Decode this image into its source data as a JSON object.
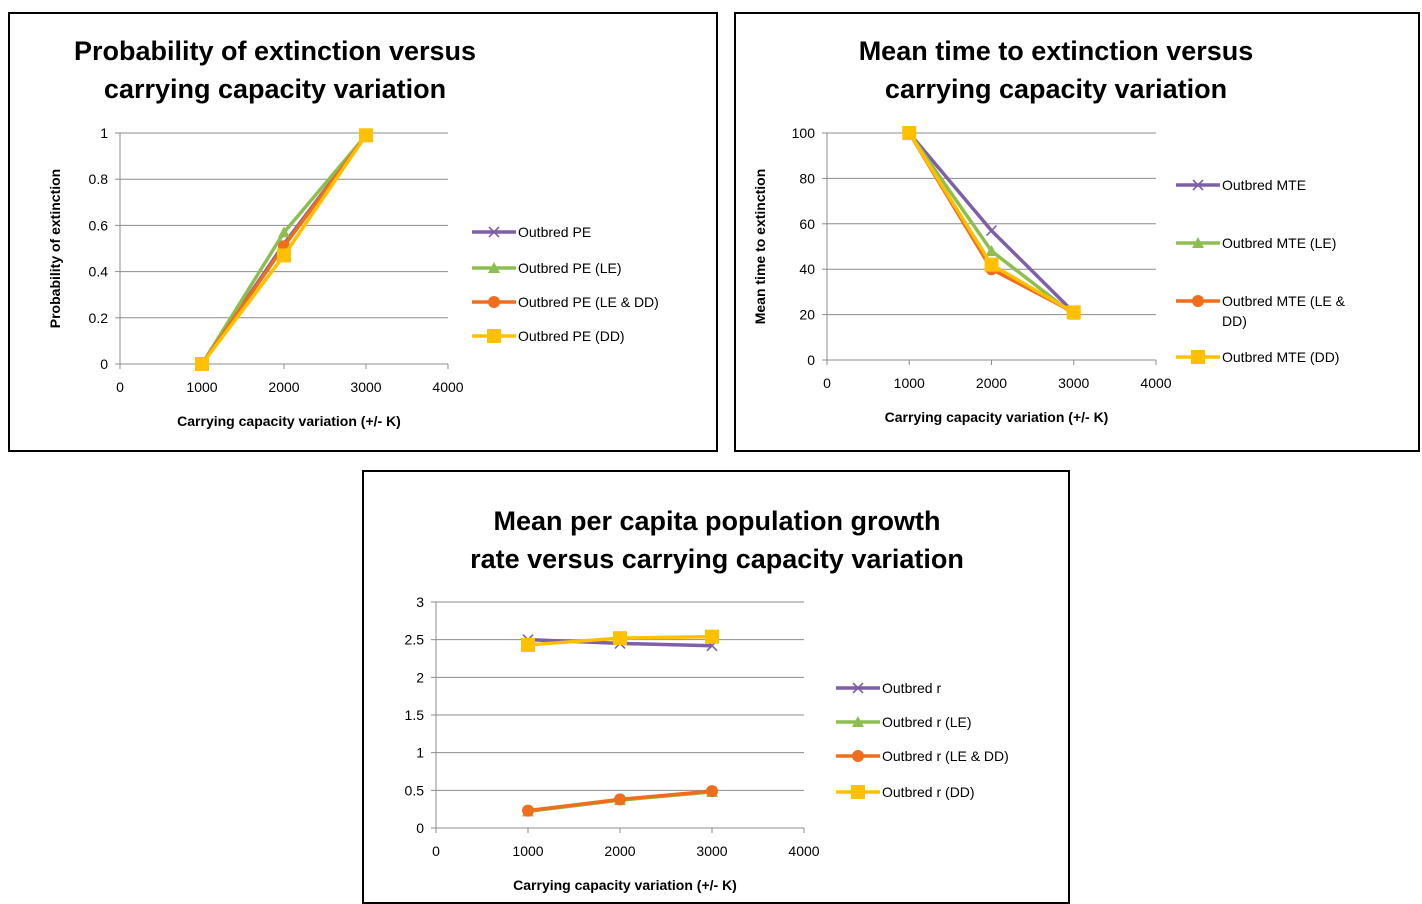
{
  "colors": {
    "grid": "#8c8c8c",
    "series_1": "#7f5fa8",
    "series_2": "#8cbe50",
    "series_3": "#ee6e1e",
    "series_4": "#ffc000"
  },
  "chart_data": [
    {
      "type": "line",
      "title_lines": [
        "Probability of extinction versus",
        "carrying capacity variation"
      ],
      "xlabel": "Carrying capacity variation (+/- K)",
      "ylabel": "Probability of extinction",
      "xlim": [
        0,
        4000
      ],
      "ylim": [
        0,
        1
      ],
      "xticks": [
        0,
        1000,
        2000,
        3000,
        4000
      ],
      "yticks": [
        0,
        0.2,
        0.4,
        0.6,
        0.8,
        1
      ],
      "x": [
        1000,
        2000,
        3000
      ],
      "legend_position": "right",
      "grid": true,
      "series": [
        {
          "name": "Outbred PE",
          "values": [
            0,
            0.52,
            0.99
          ],
          "color": "#7f5fa8",
          "marker": "x"
        },
        {
          "name": "Outbred PE (LE)",
          "values": [
            0,
            0.57,
            0.99
          ],
          "color": "#8cbe50",
          "marker": "triangle"
        },
        {
          "name": "Outbred PE (LE & DD)",
          "values": [
            0,
            0.51,
            0.99
          ],
          "color": "#ee6e1e",
          "marker": "circle"
        },
        {
          "name": "Outbred PE (DD)",
          "values": [
            0,
            0.47,
            0.99
          ],
          "color": "#ffc000",
          "marker": "square"
        }
      ]
    },
    {
      "type": "line",
      "title_lines": [
        "Mean time to extinction versus",
        "carrying capacity variation"
      ],
      "xlabel": "Carrying capacity variation (+/- K)",
      "ylabel": "Mean time to extinction",
      "xlim": [
        0,
        4000
      ],
      "ylim": [
        0,
        100
      ],
      "xticks": [
        0,
        1000,
        2000,
        3000,
        4000
      ],
      "yticks": [
        0,
        20,
        40,
        60,
        80,
        100
      ],
      "x": [
        1000,
        2000,
        3000
      ],
      "legend_position": "right",
      "grid": true,
      "series": [
        {
          "name": "Outbred MTE",
          "values": [
            100,
            57,
            21
          ],
          "color": "#7f5fa8",
          "marker": "x"
        },
        {
          "name": "Outbred MTE (LE)",
          "values": [
            100,
            48,
            20
          ],
          "color": "#8cbe50",
          "marker": "triangle"
        },
        {
          "name": "Outbred MTE (LE & DD)",
          "values": [
            100,
            40,
            21
          ],
          "color": "#ee6e1e",
          "marker": "circle"
        },
        {
          "name": "Outbred MTE (DD)",
          "values": [
            100,
            42,
            21
          ],
          "color": "#ffc000",
          "marker": "square"
        }
      ]
    },
    {
      "type": "line",
      "title_lines": [
        "Mean per capita population growth",
        "rate versus carrying capacity variation"
      ],
      "xlabel": "Carrying capacity variation (+/- K)",
      "ylabel": "",
      "xlim": [
        0,
        4000
      ],
      "ylim": [
        0,
        3
      ],
      "xticks": [
        0,
        1000,
        2000,
        3000,
        4000
      ],
      "yticks": [
        0,
        0.5,
        1,
        1.5,
        2,
        2.5,
        3
      ],
      "x": [
        1000,
        2000,
        3000
      ],
      "legend_position": "right",
      "grid": true,
      "series": [
        {
          "name": "Outbred r",
          "values": [
            2.5,
            2.45,
            2.42
          ],
          "color": "#7f5fa8",
          "marker": "x"
        },
        {
          "name": "Outbred r (LE)",
          "values": [
            0.22,
            0.37,
            0.48
          ],
          "color": "#8cbe50",
          "marker": "triangle"
        },
        {
          "name": "Outbred r (LE & DD)",
          "values": [
            0.23,
            0.38,
            0.49
          ],
          "color": "#ee6e1e",
          "marker": "circle"
        },
        {
          "name": "Outbred r (DD)",
          "values": [
            2.43,
            2.52,
            2.54
          ],
          "color": "#ffc000",
          "marker": "square"
        }
      ]
    }
  ]
}
